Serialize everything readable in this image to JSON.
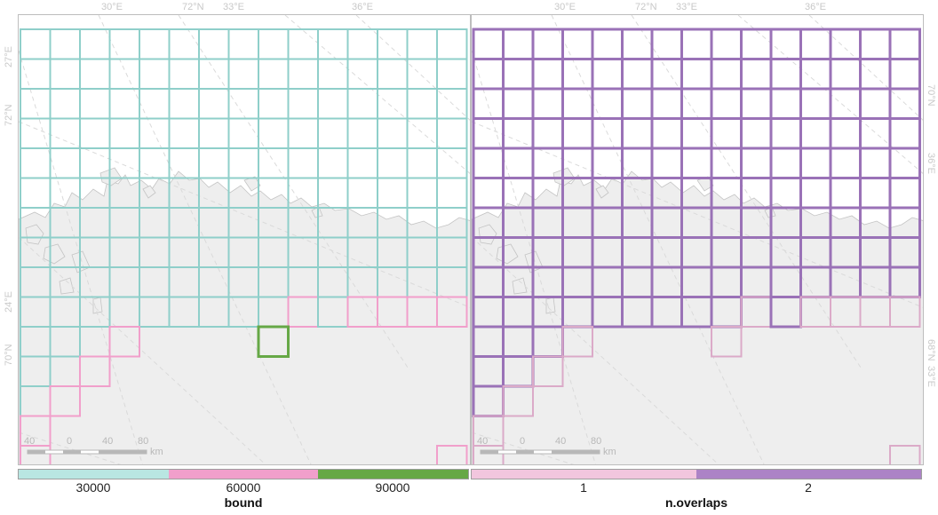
{
  "maps": [
    {
      "id": "left",
      "legend": {
        "title": "bound",
        "breaks": [
          "30000",
          "60000",
          "90000"
        ],
        "colors": [
          "#b9e6e2",
          "#f19fcb",
          "#66a846"
        ]
      }
    },
    {
      "id": "right",
      "legend": {
        "title": "n.overlaps",
        "breaks": [
          "1",
          "2"
        ],
        "colors": [
          "#f2c6de",
          "#ac83c6"
        ]
      }
    }
  ],
  "graticule_labels": {
    "top": [
      "30°E",
      "72°N",
      "33°E",
      "36°E"
    ],
    "left_left": [
      "27°E",
      "72°N",
      "24°E",
      "70°N"
    ],
    "right_right": [
      "70°N",
      "36°E",
      "68°N",
      "33°E"
    ]
  },
  "scalebar": {
    "ticks": [
      "40",
      "0",
      "40",
      "80"
    ],
    "unit": "km"
  },
  "colors": {
    "land": "#eeeeee",
    "sea": "#ffffff",
    "coast": "#c4c4c4",
    "graticule": "#dadada"
  }
}
